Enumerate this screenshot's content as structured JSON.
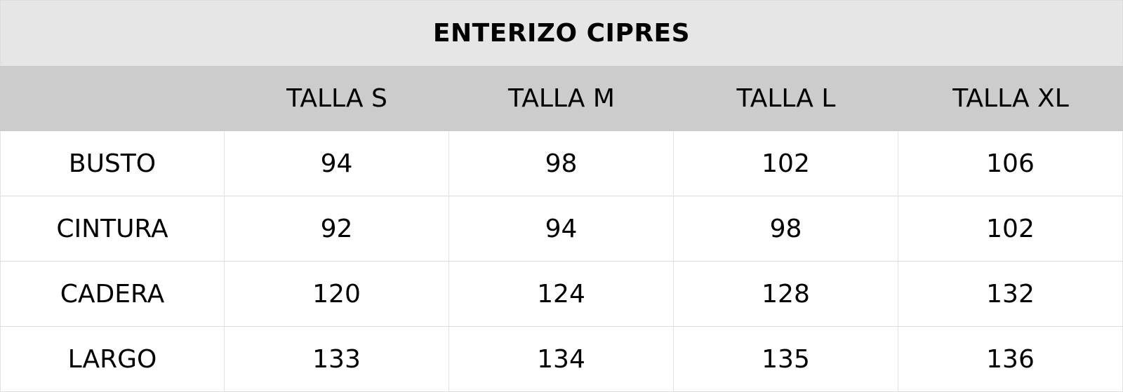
{
  "title": "ENTERIZO CIPRES",
  "header": [
    "",
    "TALLA S",
    "TALLA M",
    "TALLA L",
    "TALLA XL"
  ],
  "rows": [
    {
      "label": "BUSTO",
      "values": [
        "94",
        "98",
        "102",
        "106"
      ]
    },
    {
      "label": "CINTURA",
      "values": [
        "92",
        "94",
        "98",
        "102"
      ]
    },
    {
      "label": "CADERA",
      "values": [
        "120",
        "124",
        "128",
        "132"
      ]
    },
    {
      "label": "LARGO",
      "values": [
        "133",
        "134",
        "135",
        "136"
      ]
    }
  ],
  "colors": {
    "title_bg": "#e6e6e6",
    "header_bg": "#cccccc",
    "body_bg": "#ffffff"
  }
}
